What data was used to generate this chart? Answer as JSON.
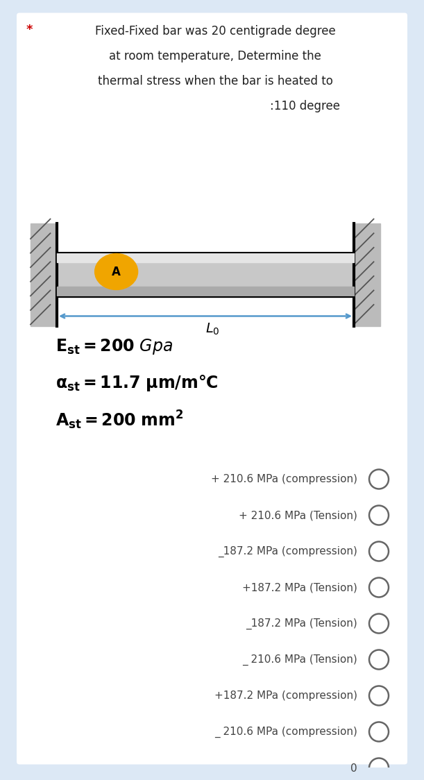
{
  "bg_color": "#dce8f5",
  "white_bg": "#ffffff",
  "title_line1": "Fixed-Fixed bar was 20 centigrade degree",
  "title_line2": "at room temperature, Determine the",
  "title_line3": "thermal stress when the bar is heated to",
  "title_line4": ":110 degree",
  "star_color": "#cc0000",
  "text_color": "#222222",
  "opts_color": "#444444",
  "circle_ec": "#666666",
  "options": [
    "+ 210.6 MPa (compression)",
    "+ 210.6 MPa (Tension)",
    "_187.2 MPa (compression)",
    "+187.2 MPa (Tension)",
    "_187.2 MPa (Tension)",
    "_ 210.6 MPa (Tension)",
    "+187.2 MPa (compression)",
    "_ 210.6 MPa (compression)",
    "0"
  ],
  "bar_main_color": "#c8c8c8",
  "bar_highlight": "#e5e5e5",
  "bar_shadow": "#aaaaaa",
  "wall_color": "#bbbbbb",
  "hatch_color": "#555555",
  "ellipse_color": "#f0a500",
  "arrow_color": "#5599cc"
}
